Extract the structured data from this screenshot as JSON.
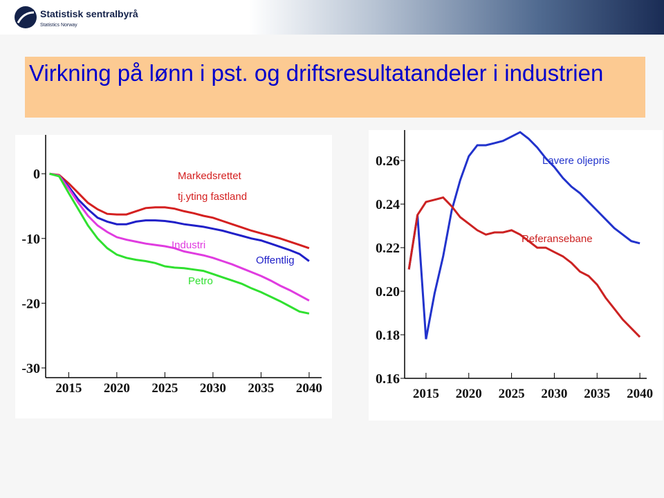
{
  "header": {
    "logo_name": "Statistisk sentralbyrå",
    "logo_subtitle": "Statistics Norway"
  },
  "title": "Virkning på lønn i pst. og driftsresultatandeler i industrien",
  "chart_data": [
    {
      "type": "line",
      "x": [
        2013,
        2014,
        2015,
        2016,
        2017,
        2018,
        2019,
        2020,
        2021,
        2022,
        2023,
        2024,
        2025,
        2026,
        2027,
        2028,
        2029,
        2030,
        2031,
        2032,
        2033,
        2034,
        2035,
        2036,
        2037,
        2038,
        2039,
        2040
      ],
      "series": [
        {
          "name": "Markedsrettet tj.yting fastland",
          "color": "#d42020",
          "values": [
            0,
            -0.2,
            -1.5,
            -3,
            -4.5,
            -5.5,
            -6.2,
            -6.3,
            -6.3,
            -5.8,
            -5.3,
            -5.2,
            -5.2,
            -5.4,
            -5.8,
            -6.1,
            -6.5,
            -6.8,
            -7.3,
            -7.8,
            -8.3,
            -8.8,
            -9.2,
            -9.6,
            -10,
            -10.5,
            -11,
            -11.5
          ]
        },
        {
          "name": "Offentlig",
          "color": "#2020c8",
          "values": [
            0,
            -0.3,
            -2,
            -4,
            -5.5,
            -6.8,
            -7.4,
            -7.8,
            -7.8,
            -7.4,
            -7.2,
            -7.2,
            -7.3,
            -7.5,
            -7.8,
            -8,
            -8.2,
            -8.5,
            -8.8,
            -9.2,
            -9.6,
            -10,
            -10.3,
            -10.8,
            -11.3,
            -11.8,
            -12.4,
            -13.5
          ]
        },
        {
          "name": "Industri",
          "color": "#e03ce0",
          "values": [
            0,
            -0.3,
            -2.3,
            -4.5,
            -6.5,
            -8,
            -9,
            -9.8,
            -10.2,
            -10.5,
            -10.8,
            -11,
            -11.2,
            -11.5,
            -12,
            -12.3,
            -12.6,
            -13,
            -13.5,
            -14,
            -14.6,
            -15.2,
            -15.8,
            -16.5,
            -17.3,
            -18,
            -18.8,
            -19.6
          ]
        },
        {
          "name": "Petro",
          "color": "#30e030",
          "values": [
            0,
            -0.4,
            -3,
            -5.5,
            -8,
            -10,
            -11.5,
            -12.5,
            -13,
            -13.3,
            -13.5,
            -13.8,
            -14.3,
            -14.5,
            -14.6,
            -14.8,
            -15,
            -15.5,
            -16,
            -16.5,
            -17,
            -17.7,
            -18.3,
            -19,
            -19.7,
            -20.5,
            -21.3,
            -21.6
          ]
        }
      ],
      "xlim": [
        2012.6,
        2041.3
      ],
      "ylim": [
        -31.5,
        6
      ],
      "xticks": [
        2015,
        2020,
        2025,
        2030,
        2035,
        2040
      ],
      "yticks": [
        0,
        -10,
        -20,
        -30
      ]
    },
    {
      "type": "line",
      "x": [
        2013,
        2014,
        2015,
        2016,
        2017,
        2018,
        2019,
        2020,
        2021,
        2022,
        2023,
        2024,
        2025,
        2026,
        2027,
        2028,
        2029,
        2030,
        2031,
        2032,
        2033,
        2034,
        2035,
        2036,
        2037,
        2038,
        2039,
        2040
      ],
      "series": [
        {
          "name": "Lavere oljepris",
          "color": "#2233cc",
          "values": [
            0.21,
            0.235,
            0.178,
            0.199,
            0.216,
            0.237,
            0.251,
            0.262,
            0.267,
            0.267,
            0.268,
            0.269,
            0.271,
            0.273,
            0.27,
            0.266,
            0.261,
            0.257,
            0.252,
            0.248,
            0.245,
            0.241,
            0.237,
            0.233,
            0.229,
            0.226,
            0.223,
            0.222
          ]
        },
        {
          "name": "Referansebane",
          "color": "#cc2222",
          "values": [
            0.21,
            0.235,
            0.241,
            0.242,
            0.243,
            0.239,
            0.234,
            0.231,
            0.228,
            0.226,
            0.227,
            0.227,
            0.228,
            0.226,
            0.223,
            0.22,
            0.22,
            0.218,
            0.216,
            0.213,
            0.209,
            0.207,
            0.203,
            0.197,
            0.192,
            0.187,
            0.183,
            0.179
          ]
        }
      ],
      "xlim": [
        2012.5,
        2040.8
      ],
      "ylim": [
        0.16,
        0.274
      ],
      "xticks": [
        2015,
        2020,
        2025,
        2030,
        2035,
        2040
      ],
      "yticks": [
        {
          "value": 0.16,
          "label": "0.16"
        },
        0.18,
        {
          "value": 0.2,
          "label": "0.20"
        },
        0.22,
        0.24,
        0.26
      ]
    }
  ]
}
